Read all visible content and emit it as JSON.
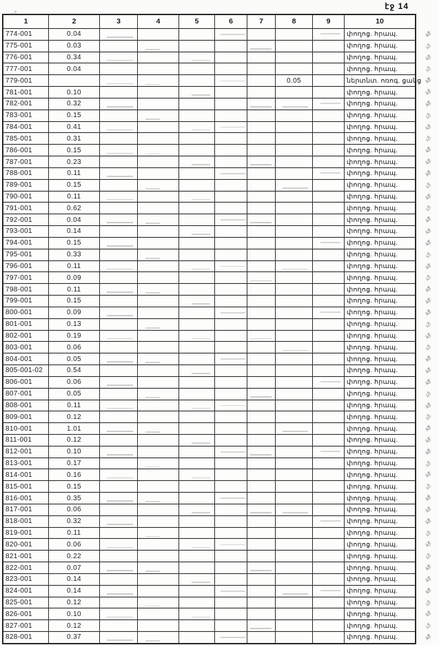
{
  "page": {
    "label": "էջ 14"
  },
  "table": {
    "column_headers": [
      "1",
      "2",
      "3",
      "4",
      "5",
      "6",
      "7",
      "8",
      "9",
      "10"
    ],
    "default_note": "փողոց. հրապ.",
    "margin_mark_glyph": "ֆ",
    "rows": [
      {
        "id": "774-001",
        "c2": "0.04"
      },
      {
        "id": "775-001",
        "c2": "0.03"
      },
      {
        "id": "776-001",
        "c2": "0.34"
      },
      {
        "id": "777-001",
        "c2": "0.04"
      },
      {
        "id": "779-001",
        "c2": "",
        "c8": "0.05",
        "note": "ներտնտ. ոռոգ. ցանց"
      },
      {
        "id": "781-001",
        "c2": "0.10"
      },
      {
        "id": "782-001",
        "c2": "0.32"
      },
      {
        "id": "783-001",
        "c2": "0.15"
      },
      {
        "id": "784-001",
        "c2": "0.41"
      },
      {
        "id": "785-001",
        "c2": "0.31"
      },
      {
        "id": "786-001",
        "c2": "0.15"
      },
      {
        "id": "787-001",
        "c2": "0.23"
      },
      {
        "id": "788-001",
        "c2": "0.11"
      },
      {
        "id": "789-001",
        "c2": "0.15"
      },
      {
        "id": "790-001",
        "c2": "0.11"
      },
      {
        "id": "791-001",
        "c2": "0.62"
      },
      {
        "id": "792-001",
        "c2": "0.04"
      },
      {
        "id": "793-001",
        "c2": "0.14"
      },
      {
        "id": "794-001",
        "c2": "0.15"
      },
      {
        "id": "795-001",
        "c2": "0.33"
      },
      {
        "id": "796-001",
        "c2": "0.11"
      },
      {
        "id": "797-001",
        "c2": "0.09"
      },
      {
        "id": "798-001",
        "c2": "0.11"
      },
      {
        "id": "799-001",
        "c2": "0.15"
      },
      {
        "id": "800-001",
        "c2": "0.09"
      },
      {
        "id": "801-001",
        "c2": "0.13"
      },
      {
        "id": "802-001",
        "c2": "0.19"
      },
      {
        "id": "803-001",
        "c2": "0.06"
      },
      {
        "id": "804-001",
        "c2": "0.05"
      },
      {
        "id": "805-001-02",
        "c2": "0.54"
      },
      {
        "id": "806-001",
        "c2": "0.06"
      },
      {
        "id": "807-001",
        "c2": "0.05"
      },
      {
        "id": "808-001",
        "c2": "0.11"
      },
      {
        "id": "809-001",
        "c2": "0.12"
      },
      {
        "id": "810-001",
        "c2": "1.01"
      },
      {
        "id": "811-001",
        "c2": "0.12"
      },
      {
        "id": "812-001",
        "c2": "0.10"
      },
      {
        "id": "813-001",
        "c2": "0.17"
      },
      {
        "id": "814-001",
        "c2": "0.16"
      },
      {
        "id": "815-001",
        "c2": "0.15"
      },
      {
        "id": "816-001",
        "c2": "0.35"
      },
      {
        "id": "817-001",
        "c2": "0.06"
      },
      {
        "id": "818-001",
        "c2": "0.32"
      },
      {
        "id": "819-001",
        "c2": "0.11"
      },
      {
        "id": "820-001",
        "c2": "0.06"
      },
      {
        "id": "821-001",
        "c2": "0.22"
      },
      {
        "id": "822-001",
        "c2": "0.07"
      },
      {
        "id": "823-001",
        "c2": "0.14"
      },
      {
        "id": "824-001",
        "c2": "0.14"
      },
      {
        "id": "825-001",
        "c2": "0.12"
      },
      {
        "id": "826-001",
        "c2": "0.10"
      },
      {
        "id": "827-001",
        "c2": "0.12"
      },
      {
        "id": "828-001",
        "c2": "0.37"
      }
    ]
  }
}
